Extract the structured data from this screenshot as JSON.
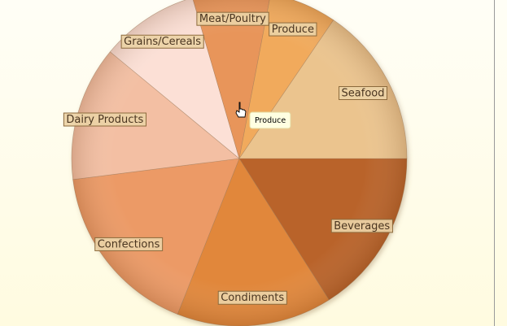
{
  "chart_data": {
    "type": "pie",
    "categories": [
      "Beverages",
      "Condiments",
      "Confections",
      "Dairy Products",
      "Grains/Cereals",
      "Meat/Poultry",
      "Produce",
      "Seafood"
    ],
    "values": [
      16,
      15,
      17,
      13,
      9.5,
      7.5,
      6.5,
      15.5
    ],
    "colors": [
      "#b9642a",
      "#e1873a",
      "#ec9a66",
      "#f3bfa3",
      "#fce0d6",
      "#e8955a",
      "#f1aa5c",
      "#ebc48e"
    ],
    "tooltip": "Produce"
  }
}
